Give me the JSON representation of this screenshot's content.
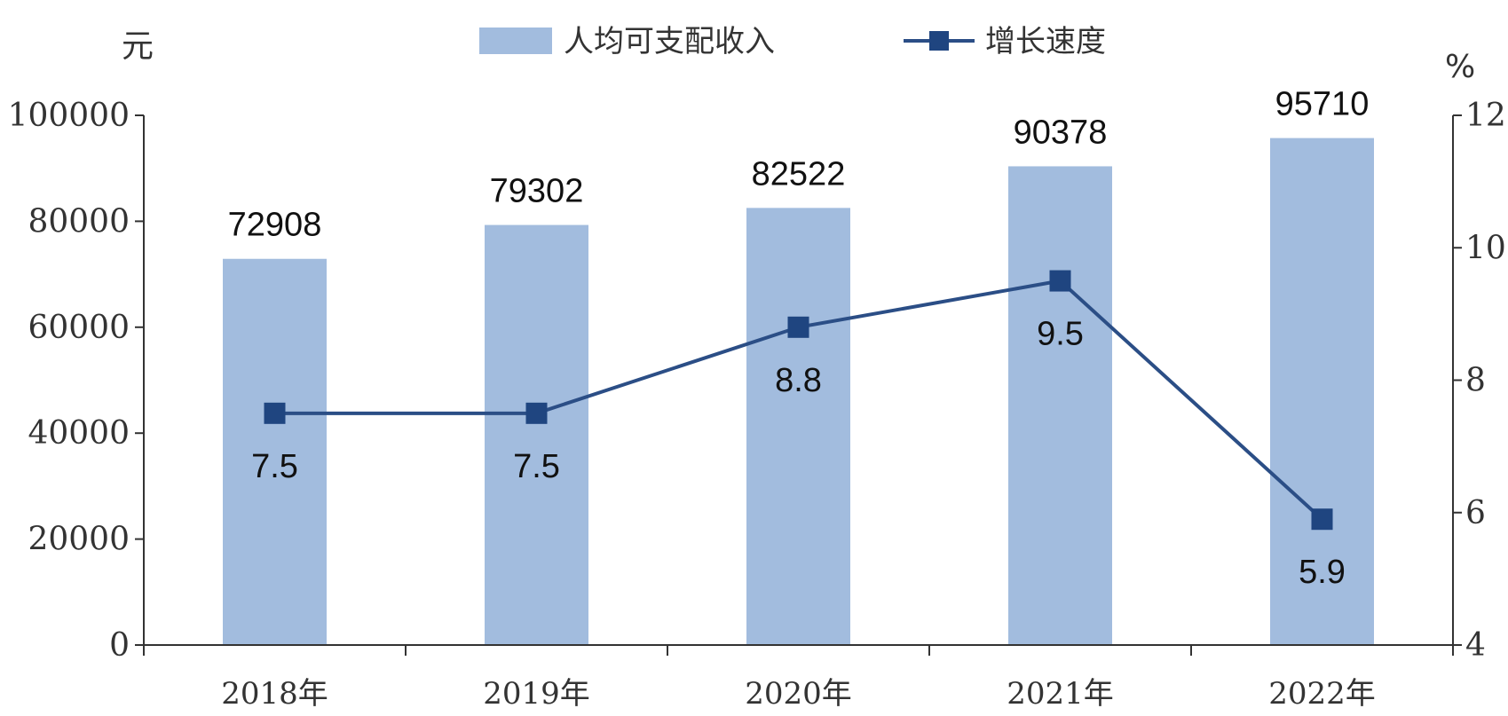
{
  "chart_data": {
    "type": "bar",
    "categories": [
      "2018年",
      "2019年",
      "2020年",
      "2021年",
      "2022年"
    ],
    "series": [
      {
        "name": "人均可支配收入",
        "type": "bar",
        "axis": "left",
        "values": [
          72908,
          79302,
          82522,
          90378,
          95710
        ]
      },
      {
        "name": "增长速度",
        "type": "line",
        "axis": "right",
        "values": [
          7.5,
          7.5,
          8.8,
          9.5,
          5.9
        ]
      }
    ],
    "left_axis": {
      "unit": "元",
      "ylim": [
        0,
        100000
      ],
      "ticks": [
        "0",
        "20000",
        "40000",
        "60000",
        "80000",
        "100000"
      ]
    },
    "right_axis": {
      "unit": "%",
      "ylim": [
        4,
        12
      ],
      "ticks": [
        "4",
        "6",
        "8",
        "10",
        "12"
      ]
    },
    "legend_position": "top-center",
    "grid": false,
    "colors": {
      "bar": "#a2bcde",
      "line": "#2b4e86",
      "marker": "#1f4580"
    }
  }
}
